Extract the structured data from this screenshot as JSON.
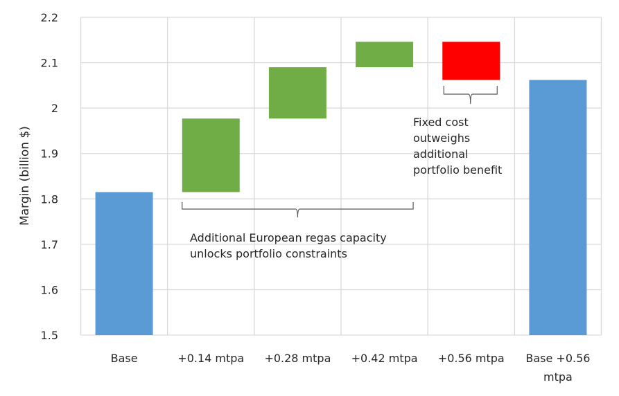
{
  "chart_data": {
    "type": "waterfall",
    "title": "",
    "xlabel": "",
    "ylabel": "Margin (billion $)",
    "ylim": [
      1.5,
      2.2
    ],
    "yticks": [
      "1.5",
      "1.6",
      "1.7",
      "1.8",
      "1.9",
      "2",
      "2.1",
      "2.2"
    ],
    "grid": true,
    "legend": "none",
    "categories": [
      [
        "Base"
      ],
      [
        "+0.14 mtpa"
      ],
      [
        "+0.28 mtpa"
      ],
      [
        "+0.42 mtpa"
      ],
      [
        "+0.56 mtpa"
      ],
      [
        "Base +0.56",
        "mtpa"
      ]
    ],
    "bars": [
      {
        "name": "Base",
        "kind": "total",
        "start": 1.5,
        "end": 1.815,
        "color": "#5B9BD5"
      },
      {
        "name": "+0.14 mtpa",
        "kind": "increase",
        "start": 1.815,
        "end": 1.977,
        "color": "#70AD47"
      },
      {
        "name": "+0.28 mtpa",
        "kind": "increase",
        "start": 1.977,
        "end": 2.09,
        "color": "#70AD47"
      },
      {
        "name": "+0.42 mtpa",
        "kind": "increase",
        "start": 2.09,
        "end": 2.146,
        "color": "#70AD47"
      },
      {
        "name": "+0.56 mtpa",
        "kind": "decrease",
        "start": 2.146,
        "end": 2.062,
        "color": "#FF0000"
      },
      {
        "name": "Base +0.56 mtpa",
        "kind": "total",
        "start": 1.5,
        "end": 2.062,
        "color": "#5B9BD5"
      }
    ],
    "annotations": [
      {
        "name": "regas-annotation",
        "span": [
          1,
          3
        ],
        "lines": [
          "Additional European regas capacity",
          "unlocks portfolio constraints"
        ]
      },
      {
        "name": "fixed-cost-annotation",
        "span": [
          4,
          4
        ],
        "lines": [
          "Fixed cost",
          "outweighs",
          "additional",
          "portfolio benefit"
        ]
      }
    ],
    "grid_color": "#D9D9D9"
  }
}
